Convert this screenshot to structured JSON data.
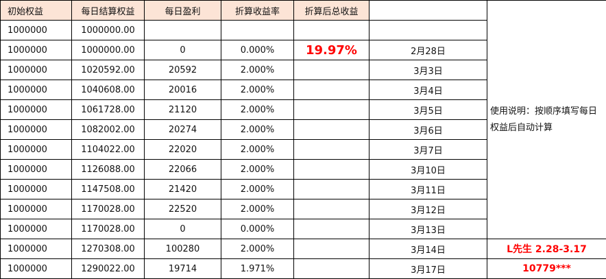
{
  "headers": [
    "初始权益",
    "每日结算权益",
    "每日盈利",
    "折算收益率",
    "折算后总收益"
  ],
  "total_return": "19.97%",
  "rows": [
    {
      "initial": "1000000",
      "equity": "1000000.00",
      "profit": "",
      "rate": "",
      "date": ""
    },
    {
      "initial": "1000000",
      "equity": "1000000.00",
      "profit": "0",
      "rate": "0.000%",
      "date": "2月28日"
    },
    {
      "initial": "1000000",
      "equity": "1020592.00",
      "profit": "20592",
      "rate": "2.000%",
      "date": "3月3日"
    },
    {
      "initial": "1000000",
      "equity": "1040608.00",
      "profit": "20016",
      "rate": "2.000%",
      "date": "3月4日"
    },
    {
      "initial": "1000000",
      "equity": "1061728.00",
      "profit": "21120",
      "rate": "2.000%",
      "date": "3月5日"
    },
    {
      "initial": "1000000",
      "equity": "1082002.00",
      "profit": "20274",
      "rate": "2.000%",
      "date": "3月6日"
    },
    {
      "initial": "1000000",
      "equity": "1104022.00",
      "profit": "22020",
      "rate": "2.000%",
      "date": "3月7日"
    },
    {
      "initial": "1000000",
      "equity": "1126088.00",
      "profit": "22066",
      "rate": "2.000%",
      "date": "3月10日"
    },
    {
      "initial": "1000000",
      "equity": "1147508.00",
      "profit": "21420",
      "rate": "2.000%",
      "date": "3月11日"
    },
    {
      "initial": "1000000",
      "equity": "1170028.00",
      "profit": "22520",
      "rate": "2.000%",
      "date": "3月12日"
    },
    {
      "initial": "1000000",
      "equity": "1170028.00",
      "profit": "0",
      "rate": "0.000%",
      "date": "3月13日"
    },
    {
      "initial": "1000000",
      "equity": "1270308.00",
      "profit": "100280",
      "rate": "2.000%",
      "date": "3月14日"
    },
    {
      "initial": "1000000",
      "equity": "1290022.00",
      "profit": "19714",
      "rate": "1.971%",
      "date": "3月17日"
    }
  ],
  "note": "使用说明：按顺序填写每日权益后自动计算",
  "signature": "L先生 2.28-3.17",
  "account": "10779***"
}
